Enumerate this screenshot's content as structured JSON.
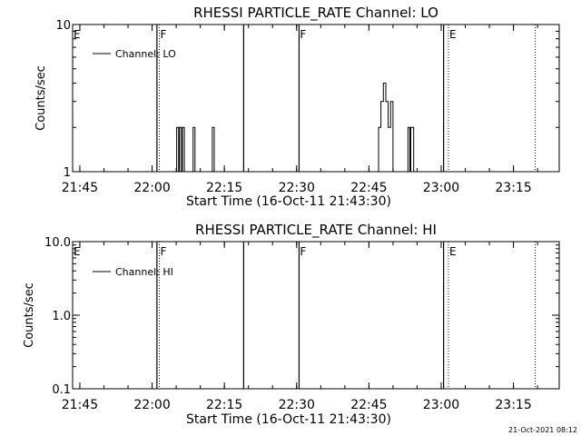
{
  "chart_data": [
    {
      "type": "line",
      "title": "RHESSI PARTICLE_RATE Channel: LO",
      "xlabel": "Start Time (16-Oct-11 21:43:30)",
      "ylabel": "Counts/sec",
      "yscale": "log",
      "xlim": [
        "21:43:30",
        "23:24:30"
      ],
      "ylim": [
        1,
        10
      ],
      "x_ticks": [
        "21:45",
        "22:00",
        "22:15",
        "22:30",
        "22:45",
        "23:00",
        "23:15"
      ],
      "y_ticks": [
        "1",
        "10"
      ],
      "legend": "top-left",
      "grid": false,
      "series": [
        {
          "name": "Channel: LO",
          "x": [
            "22:04:54",
            "22:05:06",
            "22:05:18",
            "22:05:30",
            "22:05:42",
            "22:05:54",
            "22:06:06",
            "22:06:18",
            "22:06:30",
            "22:06:42",
            "22:06:54",
            "22:08:18",
            "22:08:30",
            "22:08:42",
            "22:08:54",
            "22:12:18",
            "22:12:30",
            "22:12:42",
            "22:12:54",
            "22:46:30",
            "22:47:00",
            "22:47:30",
            "22:48:00",
            "22:48:30",
            "22:49:00",
            "22:49:30",
            "22:50:00",
            "22:52:54",
            "22:53:06",
            "22:53:18",
            "22:53:30",
            "22:53:42",
            "22:53:54",
            "22:54:06",
            "22:54:18",
            "22:54:30"
          ],
          "y": [
            1,
            2,
            2,
            1,
            2,
            2,
            1,
            2,
            2,
            1,
            1,
            1,
            2,
            2,
            1,
            1,
            2,
            2,
            1,
            1,
            2,
            3,
            4,
            3,
            2,
            3,
            1,
            1,
            2,
            2,
            1,
            2,
            2,
            2,
            1,
            1
          ]
        }
      ],
      "vlines_solid": [
        "22:01:00",
        "22:19:00",
        "22:30:30",
        "23:00:30"
      ],
      "vlines_dotted": [
        "22:01:30",
        "23:01:30",
        "23:19:30"
      ],
      "markers": [
        {
          "label": "E",
          "x": "21:43:30"
        },
        {
          "label": "F",
          "x": "22:01:30"
        },
        {
          "label": "F",
          "x": "22:30:30"
        },
        {
          "label": "E",
          "x": "23:01:30"
        }
      ]
    },
    {
      "type": "line",
      "title": "RHESSI PARTICLE_RATE Channel: HI",
      "xlabel": "Start Time (16-Oct-11 21:43:30)",
      "ylabel": "Counts/sec",
      "yscale": "log",
      "xlim": [
        "21:43:30",
        "23:24:30"
      ],
      "ylim": [
        0.1,
        10
      ],
      "x_ticks": [
        "21:45",
        "22:00",
        "22:15",
        "22:30",
        "22:45",
        "23:00",
        "23:15"
      ],
      "y_ticks": [
        "10.0",
        "1.0",
        "0.1"
      ],
      "legend": "top-left",
      "grid": false,
      "series": [
        {
          "name": "Channel: HI",
          "x": [],
          "y": []
        }
      ],
      "vlines_solid": [
        "22:01:00",
        "22:19:00",
        "22:30:30",
        "23:00:30"
      ],
      "vlines_dotted": [
        "22:01:30",
        "23:01:30",
        "23:19:30"
      ],
      "markers": [
        {
          "label": "E",
          "x": "21:43:30"
        },
        {
          "label": "F",
          "x": "22:01:30"
        },
        {
          "label": "F",
          "x": "22:30:30"
        },
        {
          "label": "E",
          "x": "23:01:30"
        }
      ]
    }
  ],
  "footer": {
    "timestamp": "21-Oct-2021 08:12"
  }
}
